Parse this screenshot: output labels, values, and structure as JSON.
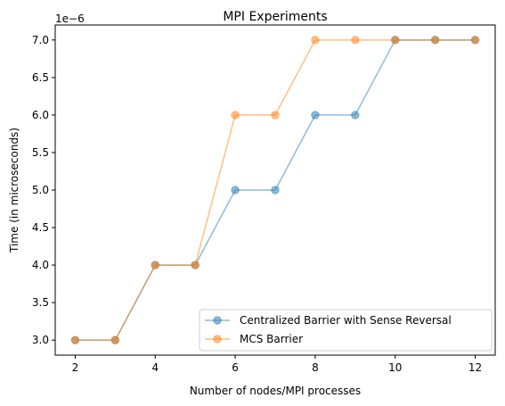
{
  "chart_data": {
    "type": "line",
    "title": "MPI Experiments",
    "xlabel": "Number of nodes/MPI processes",
    "ylabel": "Time (in microseconds)",
    "offset_label": "1e−6",
    "x": [
      2,
      3,
      4,
      5,
      6,
      7,
      8,
      9,
      10,
      11,
      12
    ],
    "xlim": [
      1.5,
      12.5
    ],
    "ylim": [
      2.8,
      7.2
    ],
    "xticks": [
      "2",
      "4",
      "6",
      "8",
      "10",
      "12"
    ],
    "yticks": [
      "3.0",
      "3.5",
      "4.0",
      "4.5",
      "5.0",
      "5.5",
      "6.0",
      "6.5",
      "7.0"
    ],
    "grid": false,
    "legend_position": "lower-right",
    "series": [
      {
        "name": "Centralized Barrier with Sense Reversal",
        "color": "#1f77b4",
        "values": [
          3.0,
          3.0,
          4.0,
          4.0,
          5.0,
          5.0,
          6.0,
          6.0,
          7.0,
          7.0,
          7.0
        ]
      },
      {
        "name": "MCS Barrier",
        "color": "#ff7f0e",
        "values": [
          3.0,
          3.0,
          4.0,
          4.0,
          6.0,
          6.0,
          7.0,
          7.0,
          7.0,
          7.0,
          7.0
        ]
      }
    ]
  }
}
